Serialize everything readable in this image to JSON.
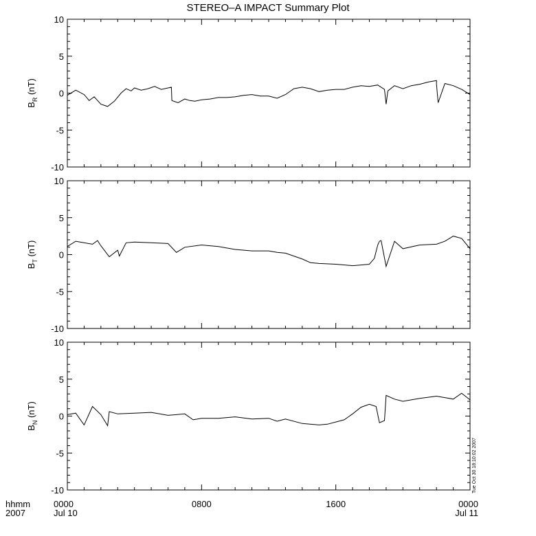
{
  "chart_data": {
    "type": "line",
    "title": "STEREO–A IMPACT Summary Plot",
    "x_axis": {
      "row1_label": "hhmm",
      "row2_label": "2007",
      "ticks": [
        {
          "hours": 0,
          "time": "0000",
          "date": "Jul 10"
        },
        {
          "hours": 8,
          "time": "0800",
          "date": ""
        },
        {
          "hours": 16,
          "time": "1600",
          "date": ""
        },
        {
          "hours": 24,
          "time": "0000",
          "date": "Jul 11"
        }
      ],
      "minor_tick_hours": 1,
      "range_hours": [
        0,
        24
      ]
    },
    "timestamp": "Tue Oct 30 18:10:02 2007",
    "panels": [
      {
        "name": "B_R",
        "ylabel_main": "B",
        "ylabel_sub": "R",
        "ylabel_unit": " (nT)",
        "ylim": [
          -10,
          10
        ],
        "yticks": [
          10,
          5,
          0,
          -5,
          -10
        ],
        "x_hours": [
          0,
          0.5,
          1,
          1.3,
          1.6,
          2,
          2.4,
          2.8,
          3.2,
          3.5,
          3.8,
          4,
          4.4,
          4.8,
          5.2,
          5.6,
          6,
          6.2,
          6.23,
          6.6,
          7,
          7.3,
          7.6,
          8,
          8.5,
          9,
          9.5,
          10,
          10.5,
          11,
          11.5,
          12,
          12.5,
          13,
          13.5,
          14,
          14.5,
          15,
          15.5,
          16,
          16.5,
          17,
          17.5,
          18,
          18.5,
          18.9,
          19,
          19.1,
          19.5,
          20,
          20.5,
          21,
          21.5,
          22,
          22,
          22.1,
          22.5,
          23,
          23.5,
          24
        ],
        "values": [
          -0.3,
          0.4,
          -0.2,
          -1.0,
          -0.5,
          -1.5,
          -1.8,
          -1.1,
          0.0,
          0.6,
          0.3,
          0.7,
          0.4,
          0.6,
          0.9,
          0.5,
          0.7,
          0.8,
          -1.0,
          -1.3,
          -0.8,
          -1.0,
          -1.1,
          -0.9,
          -0.8,
          -0.6,
          -0.6,
          -0.5,
          -0.3,
          -0.2,
          -0.4,
          -0.4,
          -0.7,
          -0.2,
          0.6,
          0.8,
          0.6,
          0.2,
          0.4,
          0.5,
          0.5,
          0.8,
          1.0,
          0.9,
          1.1,
          0.5,
          -1.5,
          0.3,
          1.0,
          0.6,
          1.0,
          1.2,
          1.5,
          1.7,
          1.2,
          -1.3,
          1.3,
          1.0,
          0.5,
          -0.2
        ]
      },
      {
        "name": "B_T",
        "ylabel_main": "B",
        "ylabel_sub": "T",
        "ylabel_unit": " (nT)",
        "ylim": [
          -10,
          10
        ],
        "yticks": [
          10,
          5,
          0,
          -5,
          -10
        ],
        "x_hours": [
          0,
          0.5,
          1,
          1.5,
          1.8,
          2,
          2.5,
          3,
          3.1,
          3.5,
          4,
          5,
          6,
          6.5,
          7,
          8,
          9,
          10,
          11,
          12,
          12.5,
          13,
          14,
          14.5,
          15,
          16,
          17,
          17.5,
          18,
          18.3,
          18.5,
          18.6,
          18.7,
          19,
          19.5,
          20,
          21,
          22,
          22.5,
          23,
          23.5,
          24
        ],
        "values": [
          1.1,
          1.8,
          1.6,
          1.4,
          1.9,
          1.2,
          -0.3,
          0.6,
          -0.2,
          1.6,
          1.7,
          1.6,
          1.5,
          0.3,
          1.0,
          1.3,
          1.1,
          0.7,
          0.5,
          0.5,
          0.3,
          0.2,
          -0.6,
          -1.1,
          -1.2,
          -1.3,
          -1.5,
          -1.4,
          -1.3,
          -0.5,
          1.3,
          1.8,
          1.9,
          -1.6,
          1.8,
          0.8,
          1.3,
          1.4,
          1.8,
          2.5,
          2.2,
          0.8
        ]
      },
      {
        "name": "B_N",
        "ylabel_main": "B",
        "ylabel_sub": "N",
        "ylabel_unit": " (nT)",
        "ylim": [
          -10,
          10
        ],
        "yticks": [
          10,
          5,
          0,
          -5,
          -10
        ],
        "x_hours": [
          0,
          0.5,
          1,
          1.5,
          2,
          2.4,
          2.5,
          3,
          4,
          5,
          6,
          7,
          7.5,
          8,
          9,
          10,
          11,
          12,
          12.5,
          13,
          14,
          15,
          15.5,
          16,
          16.5,
          17,
          17.5,
          18,
          18.4,
          18.6,
          18.9,
          19,
          19.5,
          20,
          21,
          22,
          22.5,
          23,
          23.5,
          24
        ],
        "values": [
          0.2,
          0.4,
          -1.2,
          1.3,
          0.2,
          -1.3,
          0.6,
          0.3,
          0.4,
          0.5,
          0.1,
          0.3,
          -0.5,
          -0.3,
          -0.3,
          -0.1,
          -0.4,
          -0.3,
          -0.7,
          -0.4,
          -1.0,
          -1.2,
          -1.1,
          -0.8,
          -0.5,
          0.3,
          1.2,
          1.6,
          1.3,
          -0.9,
          -0.6,
          2.8,
          2.3,
          2.0,
          2.4,
          2.7,
          2.5,
          2.3,
          3.1,
          2.2
        ]
      }
    ]
  }
}
